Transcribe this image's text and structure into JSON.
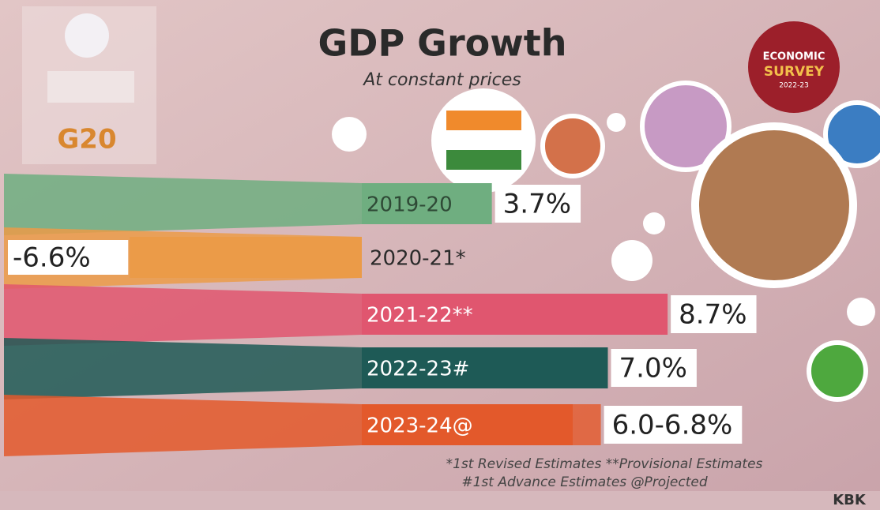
{
  "chart_data": {
    "type": "bar",
    "title": "GDP Growth",
    "subtitle": "At constant prices",
    "badge": [
      "ECONOMIC",
      "SURVEY",
      "2022-23"
    ],
    "logo": "G20",
    "categories": [
      "2019-20",
      "2020-21*",
      "2021-22**",
      "2022-23#",
      "2023-24@"
    ],
    "values": [
      3.7,
      -6.6,
      8.7,
      7.0,
      [
        6.0,
        6.8
      ]
    ],
    "value_labels": [
      "3.7%",
      "-6.6%",
      "8.7%",
      "7.0%",
      "6.0-6.8%"
    ],
    "colors": [
      "#6fae80",
      "#eb9b48",
      "#e0566f",
      "#1e5a56",
      "#e3592b"
    ],
    "footnotes": [
      "*1st Revised Estimates **Provisional Estimates",
      "#1st Advance Estimates @Projected"
    ],
    "credit": "KBK"
  }
}
